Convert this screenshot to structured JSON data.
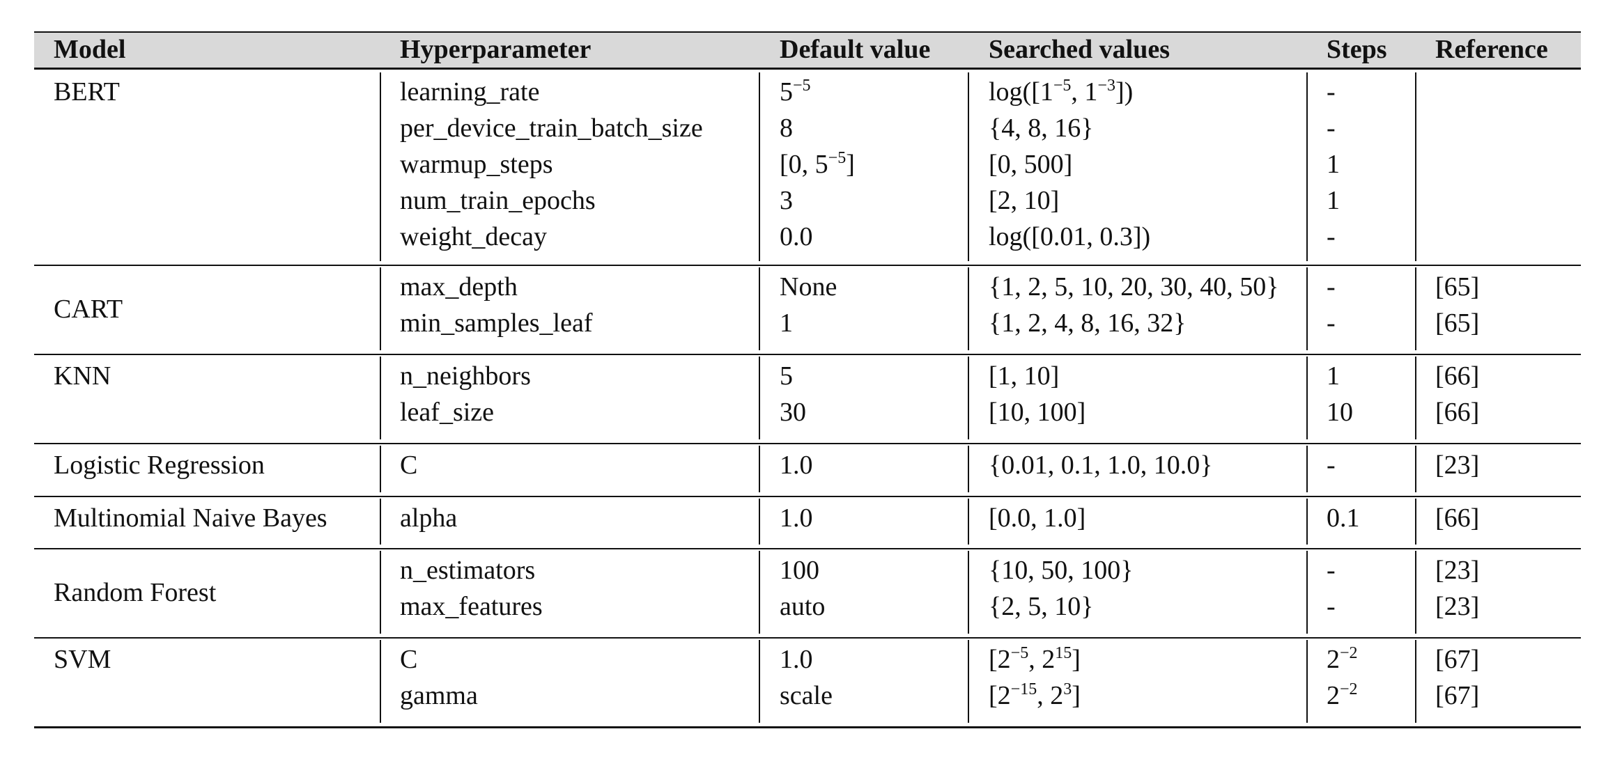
{
  "table": {
    "headers": [
      "Model",
      "Hyperparameter",
      "Default value",
      "Searched values",
      "Steps",
      "Reference"
    ],
    "groups": [
      {
        "model": "BERT",
        "rows": [
          {
            "hyperparameter": "learning_rate",
            "default": "5^{−5}",
            "searched": "log([1^{−5}, 1^{−3}])",
            "steps": "-",
            "reference": ""
          },
          {
            "hyperparameter": "per_device_train_batch_size",
            "default": "8",
            "searched": "{4, 8, 16}",
            "steps": "-",
            "reference": ""
          },
          {
            "hyperparameter": "warmup_steps",
            "default": "[0, 5^{−5}]",
            "searched": "[0, 500]",
            "steps": "1",
            "reference": ""
          },
          {
            "hyperparameter": "num_train_epochs",
            "default": "3",
            "searched": "[2, 10]",
            "steps": "1",
            "reference": ""
          },
          {
            "hyperparameter": "weight_decay",
            "default": "0.0",
            "searched": "log([0.01, 0.3])",
            "steps": "-",
            "reference": ""
          }
        ]
      },
      {
        "model": "CART",
        "rows": [
          {
            "hyperparameter": "max_depth",
            "default": "None",
            "searched": "{1, 2, 5, 10, 20, 30, 40, 50}",
            "steps": "-",
            "reference": "[65]"
          },
          {
            "hyperparameter": "min_samples_leaf",
            "default": "1",
            "searched": "{1, 2, 4, 8, 16, 32}",
            "steps": "-",
            "reference": "[65]"
          }
        ]
      },
      {
        "model": "KNN",
        "rows": [
          {
            "hyperparameter": "n_neighbors",
            "default": "5",
            "searched": "[1, 10]",
            "steps": "1",
            "reference": "[66]"
          },
          {
            "hyperparameter": "leaf_size",
            "default": "30",
            "searched": "[10, 100]",
            "steps": "10",
            "reference": "[66]"
          }
        ]
      },
      {
        "model": "Logistic Regression",
        "rows": [
          {
            "hyperparameter": "C",
            "default": "1.0",
            "searched": "{0.01, 0.1, 1.0, 10.0}",
            "steps": "-",
            "reference": "[23]"
          }
        ]
      },
      {
        "model": "Multinomial Naive Bayes",
        "rows": [
          {
            "hyperparameter": "alpha",
            "default": "1.0",
            "searched": "[0.0, 1.0]",
            "steps": "0.1",
            "reference": "[66]"
          }
        ]
      },
      {
        "model": "Random Forest",
        "rows": [
          {
            "hyperparameter": "n_estimators",
            "default": "100",
            "searched": "{10, 50, 100}",
            "steps": "-",
            "reference": "[23]"
          },
          {
            "hyperparameter": "max_features",
            "default": "auto",
            "searched": "{2, 5, 10}",
            "steps": "-",
            "reference": "[23]"
          }
        ]
      },
      {
        "model": "SVM",
        "rows": [
          {
            "hyperparameter": "C",
            "default": "1.0",
            "searched": "[2^{−5}, 2^{15}]",
            "steps": "2^{−2}",
            "reference": "[67]"
          },
          {
            "hyperparameter": "gamma",
            "default": "scale",
            "searched": "[2^{−15}, 2^{3}]",
            "steps": "2^{−2}",
            "reference": "[67]"
          }
        ]
      }
    ]
  },
  "colors": {
    "header_background": "#d9d9d9",
    "rule": "#111111",
    "text": "#111111"
  }
}
